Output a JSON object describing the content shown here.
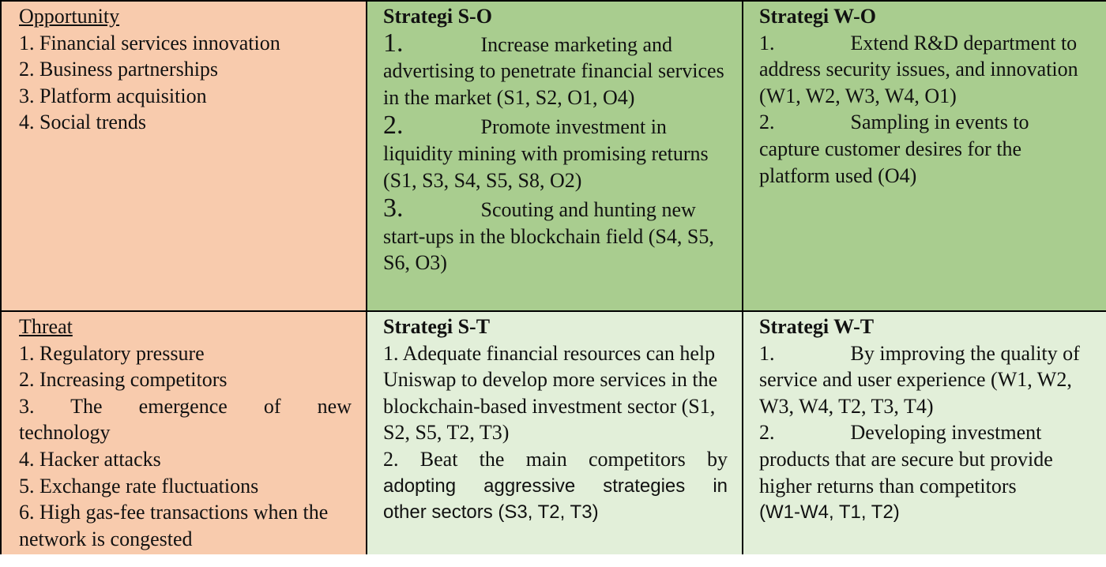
{
  "opportunity": {
    "header": "Opportunity",
    "items": [
      "1. Financial services innovation",
      "2. Business partnerships",
      "3. Platform acquisition",
      "4. Social trends"
    ]
  },
  "strategi_so": {
    "header": "Strategi S-O",
    "items": [
      {
        "num": "1.",
        "text_first": "Increase marketing and",
        "text_rest": "advertising to penetrate financial services in the market (S1, S2, O1, O4)"
      },
      {
        "num": "2.",
        "text_first": "Promote investment in",
        "text_rest": "liquidity mining with promising returns (S1, S3, S4, S5, S8, O2)"
      },
      {
        "num": "3.",
        "text_first": "Scouting and hunting",
        "text_rest": "new start-ups in the blockchain field (S4, S5, S6, O3)"
      }
    ]
  },
  "strategi_wo": {
    "header": "Strategi W-O",
    "items": [
      {
        "num": "1.",
        "text_first": "Extend R&D",
        "text_rest": "department to address security issues, and innovation (W1, W2, W3, W4, O1)"
      },
      {
        "num": "2.",
        "text_first": "Sampling in events to",
        "text_rest": "capture customer desires for the platform used (O4)"
      }
    ]
  },
  "threat": {
    "header": "Threat",
    "items": [
      "1. Regulatory pressure",
      "2. Increasing competitors",
      "3. The emergence of new",
      "technology",
      "4. Hacker attacks",
      "5. Exchange rate fluctuations",
      "6. High gas-fee transactions when the network is congested"
    ]
  },
  "strategi_st": {
    "header": "Strategi S-T",
    "item1": "1. Adequate financial resources can help Uniswap to develop more services in the blockchain-based investment sector (S1, S2, S5, T2, T3)",
    "item2_line1": "2. Beat the main competitors by",
    "item2_line2": "adopting aggressive strategies in",
    "item2_line3": "other sectors (S3, T2, T3)"
  },
  "strategi_wt": {
    "header": "Strategi W-T",
    "items": [
      {
        "num": "1.",
        "text_first": "By improving the",
        "text_rest": "quality of service and user experience (W1, W2, W3, W4, T2, T3, T4)"
      },
      {
        "num": "2.",
        "text_first": "Developing investment",
        "text_rest": "products that are secure but provide higher returns than competitors"
      }
    ],
    "item2_tail": "(W1-W4, T1, T2)"
  }
}
